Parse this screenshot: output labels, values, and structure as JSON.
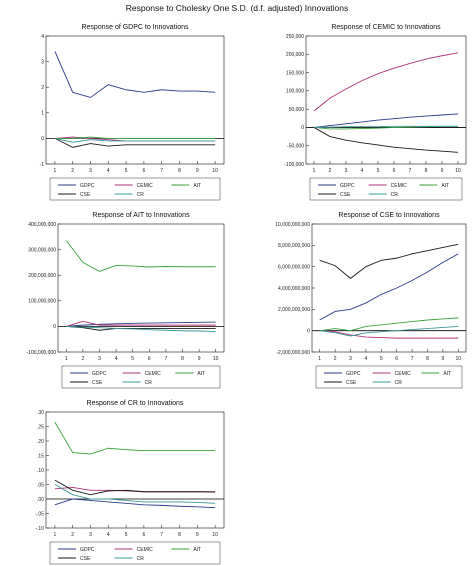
{
  "title": "Response to Cholesky One S.D. (d.f. adjusted) Innovations",
  "colors": {
    "GDPC": "#2b3a8c",
    "CEMIC": "#b0307a",
    "AIT": "#3aa33a",
    "CSE": "#1a1a1a",
    "CR": "#3a9a9a"
  },
  "chart_data": [
    {
      "type": "line",
      "title": "Response of GDPC to Innovations",
      "x": [
        1,
        2,
        3,
        4,
        5,
        6,
        7,
        8,
        9,
        10
      ],
      "ylim": [
        -1,
        4
      ],
      "yticks": [
        -1,
        0,
        1,
        2,
        3,
        4
      ],
      "ytick_labels": [
        "-1",
        "0",
        "1",
        "2",
        "3",
        "4"
      ],
      "legend_order": [
        "GDPC",
        "CEMIC",
        "AIT",
        "CSE",
        "CR"
      ],
      "series": [
        {
          "name": "GDPC",
          "values": [
            3.4,
            1.8,
            1.6,
            2.1,
            1.9,
            1.8,
            1.9,
            1.85,
            1.85,
            1.8
          ]
        },
        {
          "name": "CEMIC",
          "values": [
            0.0,
            0.05,
            0.0,
            -0.05,
            -0.1,
            -0.1,
            -0.1,
            -0.1,
            -0.1,
            -0.1
          ]
        },
        {
          "name": "AIT",
          "values": [
            0.0,
            0.0,
            0.05,
            0.0,
            0.0,
            0.0,
            0.0,
            0.0,
            0.0,
            0.0
          ]
        },
        {
          "name": "CSE",
          "values": [
            0.0,
            -0.35,
            -0.2,
            -0.3,
            -0.25,
            -0.25,
            -0.25,
            -0.25,
            -0.25,
            -0.25
          ]
        },
        {
          "name": "CR",
          "values": [
            0.0,
            -0.15,
            -0.05,
            -0.1,
            -0.1,
            -0.1,
            -0.1,
            -0.1,
            -0.1,
            -0.1
          ]
        }
      ]
    },
    {
      "type": "line",
      "title": "Response of CEMIC to Innovations",
      "x": [
        1,
        2,
        3,
        4,
        5,
        6,
        7,
        8,
        9,
        10
      ],
      "ylim": [
        -100000,
        250000
      ],
      "yticks": [
        -100000,
        -50000,
        0,
        50000,
        100000,
        150000,
        200000,
        250000
      ],
      "ytick_labels": [
        "-100,000",
        "-50,000",
        "0",
        "50,000",
        "100,000",
        "150,000",
        "200,000",
        "250,000"
      ],
      "legend_order": [
        "GDPC",
        "CEMIC",
        "AIT",
        "CSE",
        "CR"
      ],
      "series": [
        {
          "name": "GDPC",
          "values": [
            0,
            5000,
            10000,
            15000,
            20000,
            24000,
            28000,
            31000,
            34000,
            37000
          ]
        },
        {
          "name": "CEMIC",
          "values": [
            45000,
            80000,
            105000,
            128000,
            147000,
            162000,
            175000,
            187000,
            196000,
            204000
          ]
        },
        {
          "name": "AIT",
          "values": [
            0,
            -4000,
            -4000,
            -3000,
            -2000,
            0,
            1000,
            2000,
            3000,
            3000
          ]
        },
        {
          "name": "CSE",
          "values": [
            0,
            -25000,
            -35000,
            -42000,
            -48000,
            -54000,
            -58000,
            -62000,
            -65000,
            -68000
          ]
        },
        {
          "name": "CR",
          "values": [
            0,
            1000,
            2000,
            2000,
            2000,
            3000,
            3000,
            3000,
            3000,
            3000
          ]
        }
      ]
    },
    {
      "type": "line",
      "title": "Response of AIT to Innovations",
      "x": [
        1,
        2,
        3,
        4,
        5,
        6,
        7,
        8,
        9,
        10
      ],
      "ylim": [
        -100000000,
        400000000
      ],
      "yticks": [
        -100000000,
        0,
        100000000,
        200000000,
        300000000,
        400000000
      ],
      "ytick_labels": [
        "-100,000,000",
        "0",
        "100,000,000",
        "200,000,000",
        "300,000,000",
        "400,000,000"
      ],
      "legend_order": [
        "GDPC",
        "CEMIC",
        "AIT",
        "CSE",
        "CR"
      ],
      "series": [
        {
          "name": "GDPC",
          "values": [
            0,
            5000000,
            8000000,
            10000000,
            12000000,
            13000000,
            14000000,
            15000000,
            16000000,
            17000000
          ]
        },
        {
          "name": "CEMIC",
          "values": [
            0,
            20000000,
            5000000,
            5000000,
            5000000,
            5000000,
            5000000,
            5000000,
            5000000,
            5000000
          ]
        },
        {
          "name": "AIT",
          "values": [
            335000000,
            250000000,
            215000000,
            238000000,
            236000000,
            232000000,
            234000000,
            233000000,
            233000000,
            233000000
          ]
        },
        {
          "name": "CSE",
          "values": [
            0,
            -5000000,
            -15000000,
            -8000000,
            -8000000,
            -8000000,
            -8000000,
            -8000000,
            -8000000,
            -8000000
          ]
        },
        {
          "name": "CR",
          "values": [
            0,
            -3000000,
            -5000000,
            -8000000,
            -10000000,
            -13000000,
            -15000000,
            -17000000,
            -18000000,
            -20000000
          ]
        }
      ]
    },
    {
      "type": "line",
      "title": "Response of CSE to Innovations",
      "x": [
        1,
        2,
        3,
        4,
        5,
        6,
        7,
        8,
        9,
        10
      ],
      "ylim": [
        -2000000000,
        10000000000
      ],
      "yticks": [
        -2000000000,
        0,
        2000000000,
        4000000000,
        6000000000,
        8000000000,
        10000000000
      ],
      "ytick_labels": [
        "-2,000,000,000",
        "0",
        "2,000,000,000",
        "4,000,000,000",
        "6,000,000,000",
        "8,000,000,000",
        "10,000,000,000"
      ],
      "legend_order": [
        "GDPC",
        "CEMIC",
        "AIT",
        "CSE",
        "CR"
      ],
      "series": [
        {
          "name": "GDPC",
          "values": [
            1000000000,
            1800000000,
            2000000000,
            2600000000,
            3400000000,
            4000000000,
            4700000000,
            5500000000,
            6400000000,
            7200000000
          ]
        },
        {
          "name": "CEMIC",
          "values": [
            0,
            -100000000,
            -400000000,
            -600000000,
            -650000000,
            -700000000,
            -700000000,
            -700000000,
            -700000000,
            -700000000
          ]
        },
        {
          "name": "AIT",
          "values": [
            0,
            200000000,
            0,
            400000000,
            550000000,
            700000000,
            850000000,
            1000000000,
            1100000000,
            1200000000
          ]
        },
        {
          "name": "CSE",
          "values": [
            6600000000,
            6100000000,
            4900000000,
            6000000000,
            6600000000,
            6800000000,
            7200000000,
            7500000000,
            7800000000,
            8100000000
          ]
        },
        {
          "name": "CR",
          "values": [
            0,
            -200000000,
            -500000000,
            -200000000,
            -100000000,
            0,
            100000000,
            200000000,
            300000000,
            400000000
          ]
        }
      ]
    },
    {
      "type": "line",
      "title": "Response of CR to Innovations",
      "x": [
        1,
        2,
        3,
        4,
        5,
        6,
        7,
        8,
        9,
        10
      ],
      "ylim": [
        -0.1,
        0.3
      ],
      "yticks": [
        -0.1,
        -0.05,
        0.0,
        0.05,
        0.1,
        0.15,
        0.2,
        0.25,
        0.3
      ],
      "ytick_labels": [
        "-.10",
        "-.05",
        ".00",
        ".05",
        ".10",
        ".15",
        ".20",
        ".25",
        ".30"
      ],
      "legend_order": [
        "GDPC",
        "CEMIC",
        "AIT",
        "CSE",
        "CR"
      ],
      "series": [
        {
          "name": "GDPC",
          "values": [
            -0.02,
            0.0,
            -0.005,
            -0.01,
            -0.015,
            -0.02,
            -0.022,
            -0.025,
            -0.027,
            -0.03
          ]
        },
        {
          "name": "CEMIC",
          "values": [
            0.035,
            0.04,
            0.03,
            0.03,
            0.028,
            0.025,
            0.025,
            0.025,
            0.025,
            0.025
          ]
        },
        {
          "name": "AIT",
          "values": [
            0.265,
            0.16,
            0.155,
            0.175,
            0.17,
            0.167,
            0.167,
            0.167,
            0.167,
            0.167
          ]
        },
        {
          "name": "CSE",
          "values": [
            0.065,
            0.03,
            0.015,
            0.028,
            0.03,
            0.025,
            0.025,
            0.025,
            0.025,
            0.024
          ]
        },
        {
          "name": "CR",
          "values": [
            0.05,
            0.015,
            0.0,
            0.0,
            -0.005,
            -0.01,
            -0.01,
            -0.01,
            -0.012,
            -0.015
          ]
        }
      ]
    }
  ]
}
